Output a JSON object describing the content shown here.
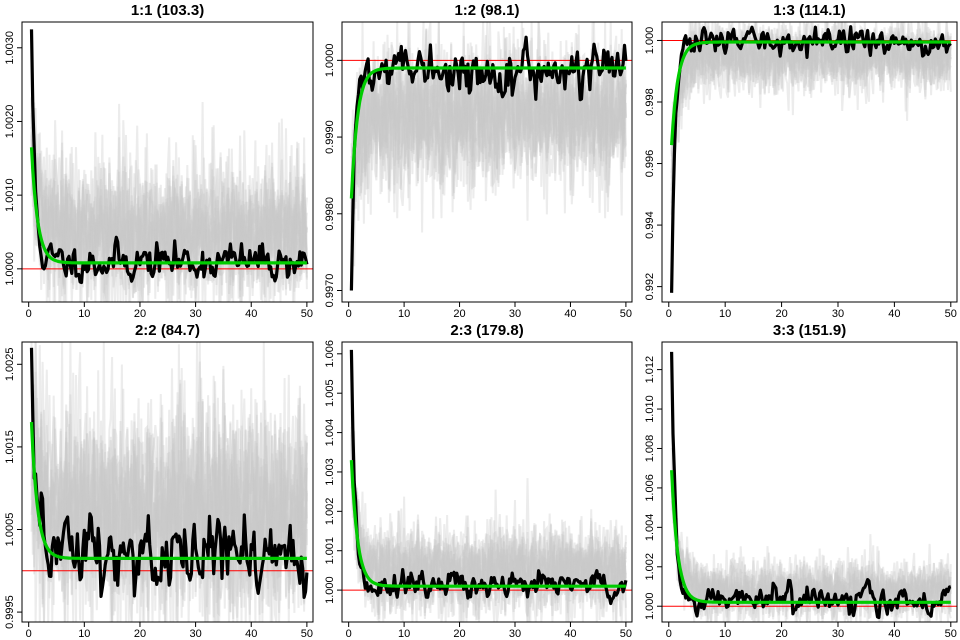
{
  "chart_data": [
    {
      "type": "line",
      "title": "1:1 (103.3)",
      "xlim": [
        -1.2,
        51.1
      ],
      "ylim": [
        0.99955,
        1.00335
      ],
      "xticks": [
        0,
        10,
        20,
        30,
        40,
        50
      ],
      "yticks": [
        "1.0000",
        "1.0010",
        "1.0020",
        "1.0030"
      ],
      "ref_line": 1.0,
      "green": {
        "start": 1.00165,
        "asymptote": 1.00008,
        "rate": 0.9
      },
      "black": {
        "start": 1.00325,
        "mean": 1.0001,
        "sd": 0.00011,
        "seed": 11
      },
      "gray": {
        "mean": 1.0005,
        "sd": 0.0005,
        "seed": 101
      }
    },
    {
      "type": "line",
      "title": "1:2 (98.1)",
      "xlim": [
        -1.2,
        51.1
      ],
      "ylim": [
        0.99685,
        1.0005
      ],
      "xticks": [
        0,
        10,
        20,
        30,
        40,
        50
      ],
      "yticks": [
        "0.9970",
        "0.9980",
        "0.9990",
        "1.0000"
      ],
      "ref_line": 1.0,
      "green": {
        "start": 0.9982,
        "asymptote": 0.9999,
        "rate": 0.9
      },
      "black": {
        "start": 0.997,
        "mean": 0.99985,
        "sd": 0.00012,
        "seed": 22
      },
      "gray": {
        "mean": 0.9993,
        "sd": 0.0005,
        "seed": 202
      }
    },
    {
      "type": "line",
      "title": "1:3 (114.1)",
      "xlim": [
        -1.2,
        51.1
      ],
      "ylim": [
        0.9915,
        1.0006
      ],
      "xticks": [
        0,
        10,
        20,
        30,
        40,
        50
      ],
      "yticks": [
        "0.992",
        "0.994",
        "0.996",
        "0.998",
        "1.000"
      ],
      "ref_line": 1.0,
      "green": {
        "start": 0.9966,
        "asymptote": 0.99995,
        "rate": 0.9
      },
      "black": {
        "start": 0.9918,
        "mean": 0.99995,
        "sd": 0.00018,
        "seed": 33
      },
      "gray": {
        "mean": 0.9995,
        "sd": 0.0006,
        "seed": 303
      }
    },
    {
      "type": "line",
      "title": "2:2 (84.7)",
      "xlim": [
        -1.2,
        51.1
      ],
      "ylim": [
        0.99938,
        1.00277
      ],
      "xticks": [
        0,
        10,
        20,
        30,
        40,
        50
      ],
      "yticks": [
        "0.9995",
        "1.0005",
        "1.0015",
        "1.0025"
      ],
      "ref_line": 1.0,
      "green": {
        "start": 1.0018,
        "asymptote": 1.00015,
        "rate": 0.9
      },
      "black": {
        "start": 1.0027,
        "mean": 1.0002,
        "sd": 0.00022,
        "seed": 44
      },
      "gray": {
        "mean": 1.0007,
        "sd": 0.0007,
        "seed": 404
      }
    },
    {
      "type": "line",
      "title": "2:3 (179.8)",
      "xlim": [
        -1.2,
        51.1
      ],
      "ylim": [
        0.99919,
        1.0063
      ],
      "xticks": [
        0,
        10,
        20,
        30,
        40,
        50
      ],
      "yticks": [
        "1.000",
        "1.001",
        "1.002",
        "1.003",
        "1.004",
        "1.005",
        "1.006"
      ],
      "ref_line": 1.0,
      "green": {
        "start": 1.0033,
        "asymptote": 1.0001,
        "rate": 0.9
      },
      "black": {
        "start": 1.0061,
        "mean": 1.0001,
        "sd": 0.00016,
        "seed": 55
      },
      "gray": {
        "mean": 1.0005,
        "sd": 0.0006,
        "seed": 505
      }
    },
    {
      "type": "line",
      "title": "3:3 (151.9)",
      "xlim": [
        -1.2,
        51.1
      ],
      "ylim": [
        0.9992,
        1.0134
      ],
      "xticks": [
        0,
        10,
        20,
        30,
        40,
        50
      ],
      "yticks": [
        "1.000",
        "1.002",
        "1.004",
        "1.006",
        "1.008",
        "1.010",
        "1.012"
      ],
      "ref_line": 1.0,
      "green": {
        "start": 1.0069,
        "asymptote": 1.0002,
        "rate": 0.9
      },
      "black": {
        "start": 1.0129,
        "mean": 1.0003,
        "sd": 0.0003,
        "seed": 66
      },
      "gray": {
        "mean": 1.0008,
        "sd": 0.0008,
        "seed": 606
      }
    }
  ],
  "colors": {
    "green": "#00cc00",
    "black": "#000000",
    "gray": "#c8c8c8",
    "ref": "#ff0000"
  }
}
